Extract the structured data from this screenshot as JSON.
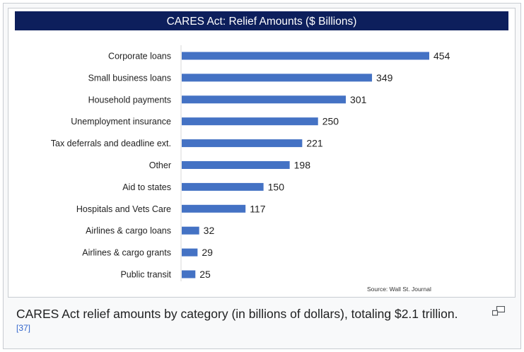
{
  "chart_data": {
    "type": "bar",
    "orientation": "horizontal",
    "title": "CARES Act:  Relief Amounts ($ Billions)",
    "categories": [
      "Corporate loans",
      "Small business loans",
      "Household payments",
      "Unemployment insurance",
      "Tax deferrals and deadline ext.",
      "Other",
      "Aid to states",
      "Hospitals and Vets Care",
      "Airlines & cargo loans",
      "Airlines & cargo grants",
      "Public transit"
    ],
    "values": [
      454,
      349,
      301,
      250,
      221,
      198,
      150,
      117,
      32,
      29,
      25
    ],
    "xlim": [
      0,
      454
    ],
    "xlabel": "",
    "ylabel": "",
    "grid": false,
    "source": "Source:  Wall St. Journal",
    "colors": {
      "bar": "#4472c4",
      "title_bg": "#0d1f5c",
      "title_text": "#ffffff"
    }
  },
  "caption": {
    "text": "CARES Act relief amounts by category (in billions of dollars), totaling $2.1 trillion.",
    "ref": "[37]"
  },
  "icons": {
    "magnify": "magnify-icon"
  }
}
